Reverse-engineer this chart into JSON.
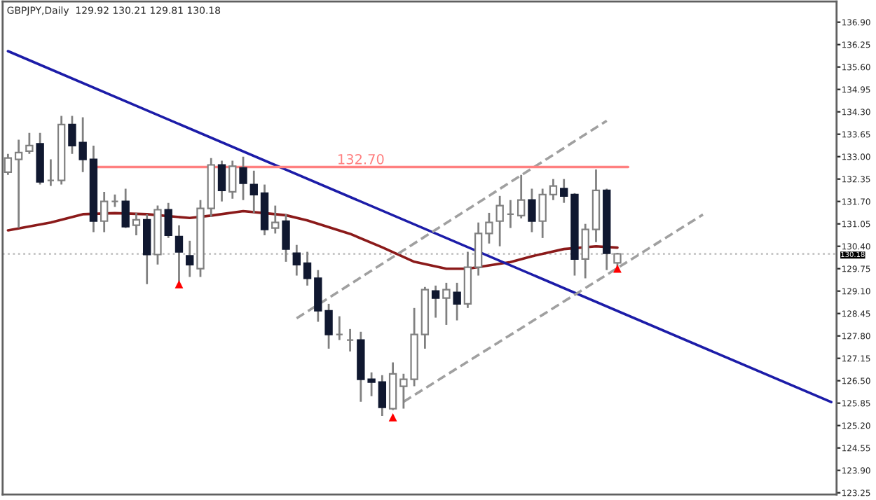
{
  "chart_data": {
    "type": "candlestick",
    "title": "GBPJPY,Daily  129.92 130.21 129.81 130.18",
    "categories": [
      null,
      null,
      null,
      null,
      null,
      null,
      null,
      null,
      null,
      null,
      null,
      null,
      null,
      null,
      null,
      null,
      null,
      null,
      null,
      null,
      null,
      null,
      null,
      null,
      null,
      null,
      null,
      null,
      null,
      null,
      null,
      null,
      null,
      null,
      null,
      null,
      null,
      null,
      null,
      null,
      null,
      null,
      null,
      null,
      null,
      null,
      null,
      null,
      null,
      null,
      null,
      null,
      null,
      null,
      null,
      null,
      null,
      null,
      null,
      null,
      null,
      null,
      null,
      null,
      null,
      null,
      null,
      null,
      null,
      null,
      null,
      null,
      null,
      null,
      null,
      null,
      null,
      null
    ],
    "ohlc": [
      [
        132.55,
        133.08,
        132.47,
        132.96
      ],
      [
        132.92,
        133.49,
        130.93,
        133.12
      ],
      [
        133.16,
        133.69,
        133.08,
        133.32
      ],
      [
        133.37,
        133.69,
        132.19,
        132.27
      ],
      [
        132.31,
        132.92,
        132.15,
        132.31
      ],
      [
        132.31,
        134.18,
        132.19,
        133.93
      ],
      [
        133.93,
        134.18,
        133.08,
        133.32
      ],
      [
        133.41,
        134.14,
        132.55,
        132.92
      ],
      [
        132.92,
        133.32,
        130.81,
        131.13
      ],
      [
        131.13,
        131.98,
        130.81,
        131.7
      ],
      [
        131.7,
        131.9,
        131.54,
        131.7
      ],
      [
        131.7,
        132.07,
        130.93,
        130.97
      ],
      [
        131.01,
        131.37,
        130.72,
        131.17
      ],
      [
        131.17,
        131.33,
        129.3,
        130.16
      ],
      [
        130.16,
        131.58,
        129.87,
        131.46
      ],
      [
        131.46,
        131.66,
        130.64,
        130.72
      ],
      [
        130.68,
        131.01,
        129.38,
        130.24
      ],
      [
        130.12,
        130.56,
        129.51,
        129.87
      ],
      [
        129.75,
        131.74,
        129.51,
        131.5
      ],
      [
        131.5,
        132.96,
        131.25,
        132.76
      ],
      [
        132.76,
        132.88,
        131.7,
        132.02
      ],
      [
        131.98,
        132.88,
        131.78,
        132.72
      ],
      [
        132.67,
        133.0,
        131.74,
        132.23
      ],
      [
        132.19,
        132.59,
        131.37,
        131.9
      ],
      [
        131.94,
        132.19,
        130.72,
        130.89
      ],
      [
        130.93,
        131.58,
        130.77,
        131.09
      ],
      [
        131.13,
        131.33,
        129.95,
        130.32
      ],
      [
        130.2,
        130.44,
        129.55,
        129.87
      ],
      [
        129.91,
        130.24,
        129.26,
        129.47
      ],
      [
        129.47,
        129.71,
        128.21,
        128.53
      ],
      [
        128.53,
        128.73,
        127.43,
        127.84
      ],
      [
        127.84,
        128.37,
        127.68,
        127.84
      ],
      [
        127.68,
        128.0,
        127.35,
        127.68
      ],
      [
        127.68,
        127.92,
        125.89,
        126.54
      ],
      [
        126.54,
        126.74,
        126.05,
        126.46
      ],
      [
        126.46,
        126.66,
        125.48,
        125.73
      ],
      [
        125.69,
        127.03,
        125.65,
        126.7
      ],
      [
        126.34,
        126.7,
        125.69,
        126.54
      ],
      [
        126.54,
        128.61,
        126.34,
        127.84
      ],
      [
        127.84,
        129.22,
        127.43,
        129.14
      ],
      [
        129.1,
        129.26,
        128.33,
        128.9
      ],
      [
        128.9,
        129.34,
        128.12,
        129.14
      ],
      [
        129.06,
        129.34,
        128.25,
        128.73
      ],
      [
        128.73,
        130.24,
        128.61,
        129.79
      ],
      [
        129.79,
        131.09,
        129.55,
        130.77
      ],
      [
        130.77,
        131.37,
        130.48,
        131.09
      ],
      [
        131.13,
        131.86,
        130.4,
        131.58
      ],
      [
        131.33,
        131.74,
        130.93,
        131.33
      ],
      [
        131.29,
        132.47,
        131.21,
        131.74
      ],
      [
        131.74,
        132.07,
        130.81,
        131.13
      ],
      [
        131.13,
        132.07,
        130.64,
        131.9
      ],
      [
        131.9,
        132.35,
        131.74,
        132.15
      ],
      [
        132.07,
        132.35,
        131.66,
        131.86
      ],
      [
        131.9,
        131.94,
        129.55,
        130.03
      ],
      [
        130.03,
        131.05,
        129.47,
        130.89
      ],
      [
        130.89,
        132.63,
        130.52,
        132.02
      ],
      [
        132.02,
        132.07,
        129.71,
        130.2
      ],
      [
        129.92,
        130.21,
        129.81,
        130.18
      ],
      null,
      null,
      null,
      null,
      null,
      null,
      null,
      null,
      null,
      null,
      null,
      null,
      null,
      null,
      null,
      null,
      null,
      null,
      null,
      null
    ],
    "series": [
      {
        "type": "line",
        "color": "#8b1a1a",
        "values": [
          130.86,
          null,
          null,
          null,
          131.09,
          null,
          null,
          131.33,
          null,
          null,
          131.36,
          null,
          null,
          131.33,
          null,
          null,
          null,
          131.22,
          null,
          131.29,
          null,
          null,
          131.42,
          null,
          131.36,
          null,
          131.3,
          null,
          131.15,
          null,
          null,
          null,
          130.76,
          null,
          null,
          130.37,
          null,
          null,
          129.95,
          null,
          null,
          129.75,
          null,
          129.75,
          null,
          null,
          null,
          129.94,
          null,
          130.11,
          null,
          null,
          130.32,
          null,
          null,
          130.4,
          null,
          130.36,
          null,
          null,
          null,
          null,
          null,
          null,
          null,
          null,
          null,
          null,
          null,
          null,
          null,
          null,
          null,
          null,
          null,
          null,
          null,
          null
        ]
      },
      {
        "type": "line",
        "color": "#1c1ca8",
        "values": [
          136.06,
          null,
          null,
          null,
          null,
          null,
          null,
          null,
          null,
          null,
          null,
          null,
          null,
          null,
          null,
          null,
          null,
          null,
          null,
          null,
          null,
          null,
          null,
          null,
          null,
          null,
          null,
          null,
          null,
          null,
          null,
          null,
          null,
          null,
          null,
          null,
          null,
          null,
          null,
          null,
          null,
          null,
          null,
          null,
          null,
          null,
          null,
          null,
          null,
          null,
          null,
          null,
          null,
          null,
          null,
          null,
          null,
          null,
          null,
          null,
          null,
          null,
          null,
          null,
          null,
          null,
          null,
          null,
          null,
          null,
          null,
          null,
          null,
          null,
          null,
          null,
          null,
          125.88
        ]
      },
      {
        "type": "line",
        "color": "#a0a0a0",
        "line_style": "dashed",
        "values": [
          null,
          null,
          null,
          null,
          null,
          null,
          null,
          null,
          null,
          null,
          null,
          null,
          null,
          null,
          null,
          null,
          null,
          null,
          null,
          null,
          null,
          null,
          null,
          null,
          null,
          null,
          null,
          128.31,
          null,
          null,
          null,
          null,
          null,
          null,
          null,
          null,
          null,
          null,
          null,
          null,
          null,
          null,
          null,
          null,
          null,
          null,
          null,
          null,
          null,
          null,
          null,
          null,
          null,
          null,
          null,
          null,
          134.04,
          null,
          null,
          null,
          null,
          null,
          null,
          null,
          null,
          null,
          null,
          null,
          null,
          null,
          null,
          null,
          null,
          null,
          null,
          null,
          null,
          null
        ]
      },
      {
        "type": "line",
        "color": "#a0a0a0",
        "line_style": "dashed",
        "values": [
          null,
          null,
          null,
          null,
          null,
          null,
          null,
          null,
          null,
          null,
          null,
          null,
          null,
          null,
          null,
          null,
          null,
          null,
          null,
          null,
          null,
          null,
          null,
          null,
          null,
          null,
          null,
          null,
          null,
          null,
          null,
          null,
          null,
          null,
          null,
          null,
          null,
          125.89,
          null,
          null,
          null,
          null,
          null,
          null,
          null,
          null,
          null,
          null,
          null,
          null,
          null,
          null,
          null,
          null,
          null,
          null,
          null,
          null,
          null,
          null,
          null,
          null,
          null,
          null,
          null,
          131.32,
          null,
          null,
          null,
          null,
          null,
          null,
          null,
          null,
          null,
          null,
          null,
          null
        ]
      },
      {
        "type": "line",
        "name": "132.70",
        "color": "#ff8080",
        "values": [
          null,
          null,
          null,
          null,
          null,
          null,
          null,
          null,
          132.7,
          null,
          null,
          null,
          null,
          null,
          null,
          null,
          null,
          null,
          null,
          null,
          null,
          null,
          null,
          null,
          null,
          null,
          null,
          null,
          null,
          null,
          null,
          null,
          null,
          null,
          null,
          null,
          null,
          null,
          null,
          null,
          null,
          null,
          null,
          null,
          null,
          null,
          null,
          null,
          null,
          null,
          null,
          null,
          null,
          null,
          null,
          null,
          null,
          null,
          132.7,
          null,
          null,
          null,
          null,
          null,
          null,
          null,
          null,
          null,
          null,
          null,
          null,
          null,
          null,
          null,
          null,
          null,
          null,
          null
        ]
      },
      {
        "type": "scatter",
        "color": "#ff0000",
        "marker": "triangle",
        "values": [
          null,
          null,
          null,
          null,
          null,
          null,
          null,
          null,
          null,
          null,
          null,
          null,
          null,
          null,
          null,
          null,
          129.3,
          null,
          null,
          null,
          null,
          null,
          null,
          null,
          null,
          null,
          null,
          null,
          null,
          null,
          null,
          null,
          null,
          null,
          null,
          null,
          125.44,
          null,
          null,
          null,
          null,
          null,
          null,
          null,
          null,
          null,
          null,
          null,
          null,
          null,
          null,
          null,
          null,
          null,
          null,
          null,
          null,
          129.75,
          null,
          null,
          null,
          null,
          null,
          null,
          null,
          null,
          null,
          null,
          null,
          null,
          null,
          null,
          null,
          null,
          null,
          null,
          null,
          null
        ]
      }
    ],
    "ref_lines": [
      {
        "axis": "y",
        "value": 130.18,
        "label": "130.18",
        "color": "#c8c8c8",
        "line_style": "dotted"
      }
    ],
    "ylim": [
      123.2,
      137.5
    ],
    "yticks": [
      {
        "value": 136.9,
        "label": "136.90"
      },
      136.25,
      {
        "value": 135.6,
        "label": "135.60"
      },
      134.95,
      {
        "value": 134.3,
        "label": "134.30"
      },
      133.65,
      {
        "value": 133.0,
        "label": "133.00"
      },
      132.35,
      {
        "value": 131.7,
        "label": "131.70"
      },
      131.05,
      {
        "value": 130.4,
        "label": "130.40"
      },
      129.75,
      {
        "value": 129.1,
        "label": "129.10"
      },
      128.45,
      {
        "value": 127.8,
        "label": "127.80"
      },
      127.15,
      {
        "value": 126.5,
        "label": "126.50"
      },
      125.85,
      {
        "value": 125.2,
        "label": "125.20"
      },
      124.55,
      {
        "value": 123.9,
        "label": "123.90"
      },
      123.25
    ],
    "tick_labels": "y",
    "grid": false,
    "legend": false
  }
}
